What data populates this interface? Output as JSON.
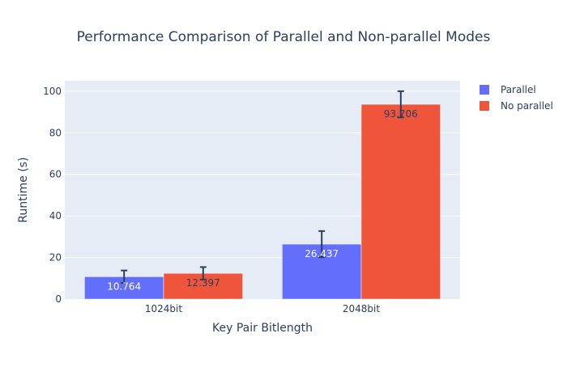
{
  "chart_data": {
    "type": "bar",
    "title": "Performance Comparison of Parallel and Non-parallel Modes",
    "xlabel": "Key Pair Bitlength",
    "ylabel": "Runtime (s)",
    "categories": [
      "1024bit",
      "2048bit"
    ],
    "ylim": [
      0,
      105
    ],
    "yticks": [
      0,
      20,
      40,
      60,
      80,
      100
    ],
    "grid": true,
    "legend_position": "top-right",
    "series": [
      {
        "name": "Parallel",
        "color": "#636efa",
        "label_color": "#ffffff",
        "values": [
          10.764,
          26.437
        ],
        "labels": [
          "10.764",
          "26.437"
        ],
        "error": [
          3.0,
          6.3
        ]
      },
      {
        "name": "No parallel",
        "color": "#ef553b",
        "label_color": "#2a3f5f",
        "values": [
          12.397,
          93.706
        ],
        "labels": [
          "12.397",
          "93.706"
        ],
        "error": [
          3.0,
          6.3
        ]
      }
    ],
    "colors": {
      "plot_background": "#e5ecf6",
      "gridline": "#ffffff",
      "text": "#2a3f5f",
      "error_bar": "#2a3f5f"
    }
  }
}
